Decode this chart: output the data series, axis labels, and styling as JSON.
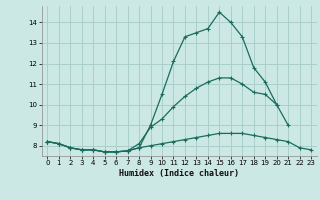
{
  "xlabel": "Humidex (Indice chaleur)",
  "bg_color": "#cce8e4",
  "grid_color": "#aacfcb",
  "line_color": "#1a6b5e",
  "x": [
    0,
    1,
    2,
    3,
    4,
    5,
    6,
    7,
    8,
    9,
    10,
    11,
    12,
    13,
    14,
    15,
    16,
    17,
    18,
    19,
    20,
    21,
    22,
    23
  ],
  "line1": [
    8.2,
    8.1,
    7.9,
    7.8,
    7.8,
    7.7,
    7.7,
    7.75,
    7.9,
    9.0,
    10.5,
    12.1,
    13.3,
    13.5,
    13.7,
    14.5,
    14.0,
    13.3,
    11.8,
    11.1,
    10.0,
    9.0,
    null,
    null
  ],
  "line2": [
    8.2,
    8.1,
    7.9,
    7.8,
    7.8,
    7.7,
    7.7,
    7.75,
    8.1,
    8.9,
    9.3,
    9.9,
    10.4,
    10.8,
    11.1,
    11.3,
    11.3,
    11.0,
    10.6,
    10.5,
    10.0,
    null,
    null,
    null
  ],
  "line3": [
    8.2,
    8.1,
    7.9,
    7.8,
    7.8,
    7.7,
    7.7,
    7.75,
    7.9,
    8.0,
    8.1,
    8.2,
    8.3,
    8.4,
    8.5,
    8.6,
    8.6,
    8.6,
    8.5,
    8.4,
    8.3,
    8.2,
    7.9,
    7.8
  ],
  "ylim": [
    7.5,
    14.8
  ],
  "xlim": [
    -0.5,
    23.5
  ],
  "yticks": [
    8,
    9,
    10,
    11,
    12,
    13,
    14
  ],
  "xticks": [
    0,
    1,
    2,
    3,
    4,
    5,
    6,
    7,
    8,
    9,
    10,
    11,
    12,
    13,
    14,
    15,
    16,
    17,
    18,
    19,
    20,
    21,
    22,
    23
  ]
}
